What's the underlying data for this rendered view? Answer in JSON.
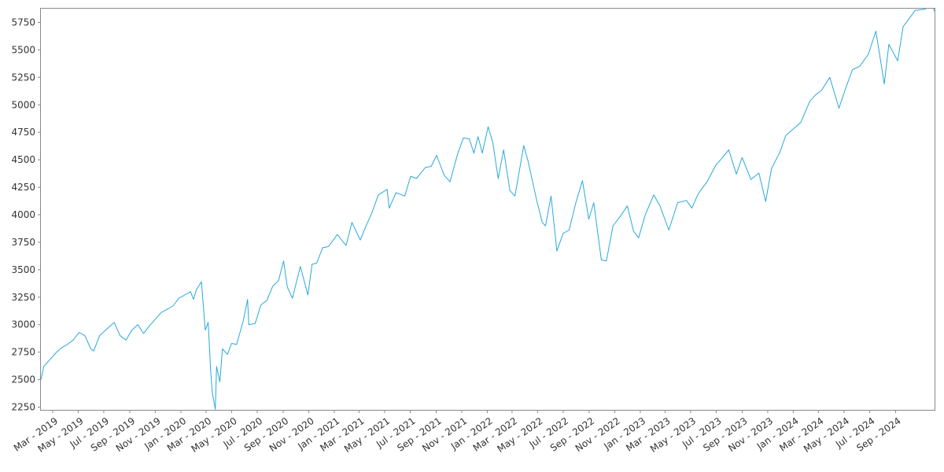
{
  "chart_data": {
    "type": "line",
    "title": "",
    "xlabel": "",
    "ylabel": "",
    "ylim": [
      2225,
      5875
    ],
    "xlim": [
      "2019-02-01",
      "2024-12-03"
    ],
    "grid": false,
    "legend": "none",
    "line_color": "#29a8dc",
    "y_ticks": [
      2250,
      2500,
      2750,
      3000,
      3250,
      3500,
      3750,
      4000,
      4250,
      4500,
      4750,
      5000,
      5250,
      5500,
      5750
    ],
    "x_ticks": [
      {
        "date": "2019-03-01",
        "label": "Mar - 2019"
      },
      {
        "date": "2019-05-01",
        "label": "May - 2019"
      },
      {
        "date": "2019-07-01",
        "label": "Jul - 2019"
      },
      {
        "date": "2019-09-01",
        "label": "Sep - 2019"
      },
      {
        "date": "2019-11-01",
        "label": "Nov - 2019"
      },
      {
        "date": "2020-01-01",
        "label": "Jan - 2020"
      },
      {
        "date": "2020-03-01",
        "label": "Mar - 2020"
      },
      {
        "date": "2020-05-01",
        "label": "May - 2020"
      },
      {
        "date": "2020-07-01",
        "label": "Jul - 2020"
      },
      {
        "date": "2020-09-01",
        "label": "Sep - 2020"
      },
      {
        "date": "2020-11-01",
        "label": "Nov - 2020"
      },
      {
        "date": "2021-01-01",
        "label": "Jan - 2021"
      },
      {
        "date": "2021-03-01",
        "label": "Mar - 2021"
      },
      {
        "date": "2021-05-01",
        "label": "May - 2021"
      },
      {
        "date": "2021-07-01",
        "label": "Jul - 2021"
      },
      {
        "date": "2021-09-01",
        "label": "Sep - 2021"
      },
      {
        "date": "2021-11-01",
        "label": "Nov - 2021"
      },
      {
        "date": "2022-01-01",
        "label": "Jan - 2022"
      },
      {
        "date": "2022-03-01",
        "label": "Mar - 2022"
      },
      {
        "date": "2022-05-01",
        "label": "May - 2022"
      },
      {
        "date": "2022-07-01",
        "label": "Jul - 2022"
      },
      {
        "date": "2022-09-01",
        "label": "Sep - 2022"
      },
      {
        "date": "2022-11-01",
        "label": "Nov - 2022"
      },
      {
        "date": "2023-01-01",
        "label": "Jan - 2023"
      },
      {
        "date": "2023-03-01",
        "label": "Mar - 2023"
      },
      {
        "date": "2023-05-01",
        "label": "May - 2023"
      },
      {
        "date": "2023-07-01",
        "label": "Jul - 2023"
      },
      {
        "date": "2023-09-01",
        "label": "Sep - 2023"
      },
      {
        "date": "2023-11-01",
        "label": "Nov - 2023"
      },
      {
        "date": "2024-01-01",
        "label": "Jan - 2024"
      },
      {
        "date": "2024-03-01",
        "label": "Mar - 2024"
      },
      {
        "date": "2024-05-01",
        "label": "May - 2024"
      },
      {
        "date": "2024-07-01",
        "label": "Jul - 2024"
      },
      {
        "date": "2024-09-01",
        "label": "Sep - 2024"
      }
    ],
    "series": [
      {
        "points": [
          [
            "2019-02-01",
            2500
          ],
          [
            "2019-02-08",
            2620
          ],
          [
            "2019-02-22",
            2680
          ],
          [
            "2019-03-08",
            2740
          ],
          [
            "2019-03-22",
            2790
          ],
          [
            "2019-04-05",
            2820
          ],
          [
            "2019-04-19",
            2860
          ],
          [
            "2019-05-03",
            2930
          ],
          [
            "2019-05-17",
            2900
          ],
          [
            "2019-05-31",
            2780
          ],
          [
            "2019-06-07",
            2760
          ],
          [
            "2019-06-21",
            2900
          ],
          [
            "2019-07-05",
            2950
          ],
          [
            "2019-07-26",
            3020
          ],
          [
            "2019-08-09",
            2900
          ],
          [
            "2019-08-23",
            2860
          ],
          [
            "2019-09-06",
            2950
          ],
          [
            "2019-09-20",
            3000
          ],
          [
            "2019-10-04",
            2920
          ],
          [
            "2019-10-18",
            2990
          ],
          [
            "2019-11-01",
            3050
          ],
          [
            "2019-11-15",
            3110
          ],
          [
            "2019-11-29",
            3140
          ],
          [
            "2019-12-13",
            3170
          ],
          [
            "2019-12-27",
            3240
          ],
          [
            "2020-01-10",
            3270
          ],
          [
            "2020-01-24",
            3300
          ],
          [
            "2020-01-31",
            3230
          ],
          [
            "2020-02-07",
            3320
          ],
          [
            "2020-02-19",
            3390
          ],
          [
            "2020-02-28",
            2950
          ],
          [
            "2020-03-06",
            3020
          ],
          [
            "2020-03-12",
            2580
          ],
          [
            "2020-03-16",
            2380
          ],
          [
            "2020-03-23",
            2230
          ],
          [
            "2020-03-26",
            2620
          ],
          [
            "2020-04-03",
            2480
          ],
          [
            "2020-04-09",
            2780
          ],
          [
            "2020-04-21",
            2730
          ],
          [
            "2020-05-01",
            2830
          ],
          [
            "2020-05-13",
            2820
          ],
          [
            "2020-05-29",
            3040
          ],
          [
            "2020-06-08",
            3230
          ],
          [
            "2020-06-11",
            3000
          ],
          [
            "2020-06-26",
            3010
          ],
          [
            "2020-07-10",
            3180
          ],
          [
            "2020-07-24",
            3220
          ],
          [
            "2020-08-07",
            3350
          ],
          [
            "2020-08-21",
            3400
          ],
          [
            "2020-09-02",
            3580
          ],
          [
            "2020-09-11",
            3340
          ],
          [
            "2020-09-23",
            3240
          ],
          [
            "2020-10-12",
            3530
          ],
          [
            "2020-10-30",
            3270
          ],
          [
            "2020-11-09",
            3550
          ],
          [
            "2020-11-20",
            3560
          ],
          [
            "2020-12-04",
            3700
          ],
          [
            "2020-12-18",
            3710
          ],
          [
            "2021-01-08",
            3820
          ],
          [
            "2021-01-29",
            3720
          ],
          [
            "2021-02-12",
            3930
          ],
          [
            "2021-03-04",
            3770
          ],
          [
            "2021-03-19",
            3910
          ],
          [
            "2021-04-01",
            4020
          ],
          [
            "2021-04-16",
            4180
          ],
          [
            "2021-05-07",
            4230
          ],
          [
            "2021-05-12",
            4060
          ],
          [
            "2021-05-28",
            4200
          ],
          [
            "2021-06-18",
            4170
          ],
          [
            "2021-07-02",
            4350
          ],
          [
            "2021-07-16",
            4330
          ],
          [
            "2021-08-06",
            4430
          ],
          [
            "2021-08-20",
            4440
          ],
          [
            "2021-09-02",
            4540
          ],
          [
            "2021-09-20",
            4360
          ],
          [
            "2021-10-04",
            4300
          ],
          [
            "2021-10-22",
            4550
          ],
          [
            "2021-11-05",
            4700
          ],
          [
            "2021-11-19",
            4690
          ],
          [
            "2021-11-30",
            4560
          ],
          [
            "2021-12-10",
            4710
          ],
          [
            "2021-12-20",
            4560
          ],
          [
            "2022-01-03",
            4800
          ],
          [
            "2022-01-14",
            4660
          ],
          [
            "2022-01-27",
            4330
          ],
          [
            "2022-02-09",
            4590
          ],
          [
            "2022-02-24",
            4220
          ],
          [
            "2022-03-08",
            4170
          ],
          [
            "2022-03-29",
            4630
          ],
          [
            "2022-04-08",
            4490
          ],
          [
            "2022-04-29",
            4130
          ],
          [
            "2022-05-12",
            3930
          ],
          [
            "2022-05-20",
            3900
          ],
          [
            "2022-06-02",
            4170
          ],
          [
            "2022-06-16",
            3670
          ],
          [
            "2022-07-01",
            3830
          ],
          [
            "2022-07-15",
            3860
          ],
          [
            "2022-08-01",
            4120
          ],
          [
            "2022-08-16",
            4310
          ],
          [
            "2022-08-31",
            3960
          ],
          [
            "2022-09-12",
            4110
          ],
          [
            "2022-09-30",
            3590
          ],
          [
            "2022-10-12",
            3580
          ],
          [
            "2022-10-28",
            3900
          ],
          [
            "2022-11-15",
            3990
          ],
          [
            "2022-12-01",
            4080
          ],
          [
            "2022-12-16",
            3850
          ],
          [
            "2022-12-28",
            3790
          ],
          [
            "2023-01-13",
            4000
          ],
          [
            "2023-02-02",
            4180
          ],
          [
            "2023-02-17",
            4080
          ],
          [
            "2023-03-10",
            3860
          ],
          [
            "2023-03-31",
            4110
          ],
          [
            "2023-04-21",
            4130
          ],
          [
            "2023-05-04",
            4060
          ],
          [
            "2023-05-19",
            4190
          ],
          [
            "2023-06-09",
            4300
          ],
          [
            "2023-06-30",
            4450
          ],
          [
            "2023-07-14",
            4510
          ],
          [
            "2023-07-31",
            4590
          ],
          [
            "2023-08-18",
            4370
          ],
          [
            "2023-09-01",
            4520
          ],
          [
            "2023-09-22",
            4320
          ],
          [
            "2023-10-11",
            4380
          ],
          [
            "2023-10-27",
            4120
          ],
          [
            "2023-11-10",
            4420
          ],
          [
            "2023-11-30",
            4570
          ],
          [
            "2023-12-14",
            4720
          ],
          [
            "2023-12-29",
            4770
          ],
          [
            "2024-01-19",
            4840
          ],
          [
            "2024-02-09",
            5030
          ],
          [
            "2024-02-23",
            5090
          ],
          [
            "2024-03-08",
            5130
          ],
          [
            "2024-03-28",
            5250
          ],
          [
            "2024-04-19",
            4970
          ],
          [
            "2024-05-03",
            5130
          ],
          [
            "2024-05-21",
            5320
          ],
          [
            "2024-06-07",
            5350
          ],
          [
            "2024-06-28",
            5460
          ],
          [
            "2024-07-16",
            5670
          ],
          [
            "2024-08-05",
            5190
          ],
          [
            "2024-08-16",
            5550
          ],
          [
            "2024-09-06",
            5400
          ],
          [
            "2024-09-19",
            5710
          ],
          [
            "2024-10-18",
            5860
          ],
          [
            "2024-11-11",
            5870
          ],
          [
            "2024-11-22",
            5960
          ],
          [
            "2024-12-03",
            5850
          ]
        ]
      }
    ]
  }
}
